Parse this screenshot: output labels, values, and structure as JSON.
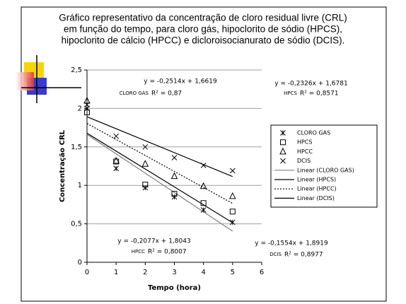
{
  "chart_data": {
    "type": "scatter",
    "title_lines": [
      "Gráfico representativo da concentração de cloro residual livre (CRL)",
      "em função do tempo, para cloro gás, hipoclorito de sódio (HPCS),",
      "hipoclorito de cálcio (HPCC) e dicloroisocianurato de sódio (DCIS)."
    ],
    "x_label": "Tempo (hora)",
    "y_label": "Concentração CRL",
    "xlim": [
      0,
      6
    ],
    "xticks": [
      0,
      1,
      2,
      3,
      4,
      5,
      6
    ],
    "ylim": [
      0,
      2.5
    ],
    "yticks": [
      0,
      {
        "value": 0.5,
        "label": "0,5"
      },
      1,
      {
        "value": 1.5,
        "label": "1,5"
      },
      2,
      {
        "value": 2.5,
        "label": "2,5"
      }
    ],
    "grid": true,
    "x": [
      0,
      1,
      2,
      3,
      4,
      5
    ],
    "series": [
      {
        "name": "CLORO GAS",
        "marker": "asterisk",
        "color": "#000000",
        "values": [
          2.05,
          1.22,
          0.97,
          0.85,
          0.68,
          0.52
        ],
        "trendline": {
          "name": "Linear (CLORO GAS)",
          "color": "#808080",
          "dash": "solid",
          "slope": -0.2514,
          "intercept": 1.6619,
          "equation": "y = -0,2514x + 1,6619",
          "series_label": "CLORO GÁS",
          "r2": 0.87,
          "r2_label": "R² = 0,87"
        }
      },
      {
        "name": "HPCS",
        "marker": "square",
        "color": "#000000",
        "values": [
          1.95,
          1.31,
          1.01,
          0.89,
          0.77,
          0.66
        ],
        "trendline": {
          "name": "Linear (HPCS)",
          "color": "#000000",
          "dash": "solid",
          "slope": -0.2326,
          "intercept": 1.6781,
          "equation": "y = -0,2326x + 1,6781",
          "series_label": "HPCS",
          "r2": 0.8571,
          "r2_label": "R² = 0,8571"
        }
      },
      {
        "name": "HPCC",
        "marker": "triangle",
        "color": "#000000",
        "values": [
          2.1,
          1.32,
          1.28,
          1.12,
          0.99,
          0.86
        ],
        "trendline": {
          "name": "Linear (HPCC)",
          "color": "#000000",
          "dash": "dotted",
          "slope": -0.2077,
          "intercept": 1.8043,
          "equation": "y = -0,2077x + 1,8043",
          "series_label": "HPCC",
          "r2": 0.8007,
          "r2_label": "R² = 0,8007"
        }
      },
      {
        "name": "DCIS",
        "marker": "cross",
        "color": "#000000",
        "values": [
          2.0,
          1.64,
          1.5,
          1.36,
          1.26,
          1.19
        ],
        "trendline": {
          "name": "Linear (DCIS)",
          "color": "#000000",
          "dash": "solid",
          "slope": -0.1554,
          "intercept": 1.8919,
          "equation": "y = -0,1554x + 1,8919",
          "series_label": "DCIS",
          "r2": 0.8977,
          "r2_label": "R² = 0,8977"
        }
      }
    ]
  }
}
